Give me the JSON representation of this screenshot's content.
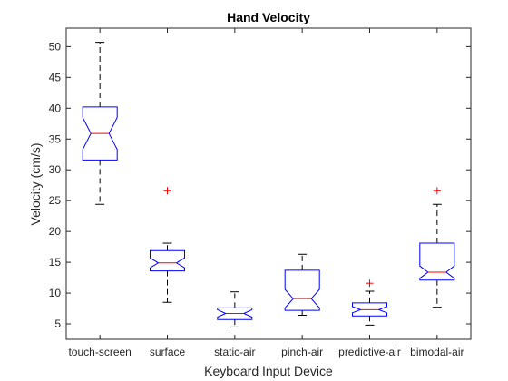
{
  "chart_data": {
    "type": "boxplot",
    "title": "Hand Velocity",
    "xlabel": "Keyboard Input Device",
    "ylabel": "Velocity (cm/s)",
    "ylim": [
      2.5,
      53
    ],
    "yticks": [
      5,
      10,
      15,
      20,
      25,
      30,
      35,
      40,
      45,
      50
    ],
    "notched": true,
    "grid": false,
    "colors": {
      "box": "#0000ff",
      "median": "#ff0000",
      "whisker": "#000000",
      "outlier": "#ff0000",
      "axis": "#262626"
    },
    "categories": [
      "touch-screen",
      "surface",
      "static-air",
      "pinch-air",
      "predictive-air",
      "bimodal-air"
    ],
    "boxes": [
      {
        "whisker_low": 24.4,
        "q1": 31.6,
        "median": 35.9,
        "q3": 40.2,
        "whisker_high": 50.7,
        "notch_low": 33.3,
        "notch_high": 38.5,
        "outliers": []
      },
      {
        "whisker_low": 8.5,
        "q1": 13.6,
        "median": 14.9,
        "q3": 16.9,
        "whisker_high": 18.1,
        "notch_low": 14.1,
        "notch_high": 15.7,
        "outliers": [
          26.6
        ]
      },
      {
        "whisker_low": 4.5,
        "q1": 5.7,
        "median": 6.7,
        "q3": 7.6,
        "whisker_high": 10.2,
        "notch_low": 6.1,
        "notch_high": 7.3,
        "outliers": []
      },
      {
        "whisker_low": 6.4,
        "q1": 7.2,
        "median": 9.1,
        "q3": 13.7,
        "whisker_high": 16.3,
        "notch_low": 7.6,
        "notch_high": 10.6,
        "outliers": []
      },
      {
        "whisker_low": 4.8,
        "q1": 6.3,
        "median": 7.3,
        "q3": 8.4,
        "whisker_high": 10.3,
        "notch_low": 6.8,
        "notch_high": 7.8,
        "outliers": [
          11.6
        ]
      },
      {
        "whisker_low": 7.7,
        "q1": 12.1,
        "median": 13.4,
        "q3": 18.1,
        "whisker_high": 24.4,
        "notch_low": 12.4,
        "notch_high": 14.4,
        "outliers": [
          26.6
        ]
      }
    ]
  }
}
